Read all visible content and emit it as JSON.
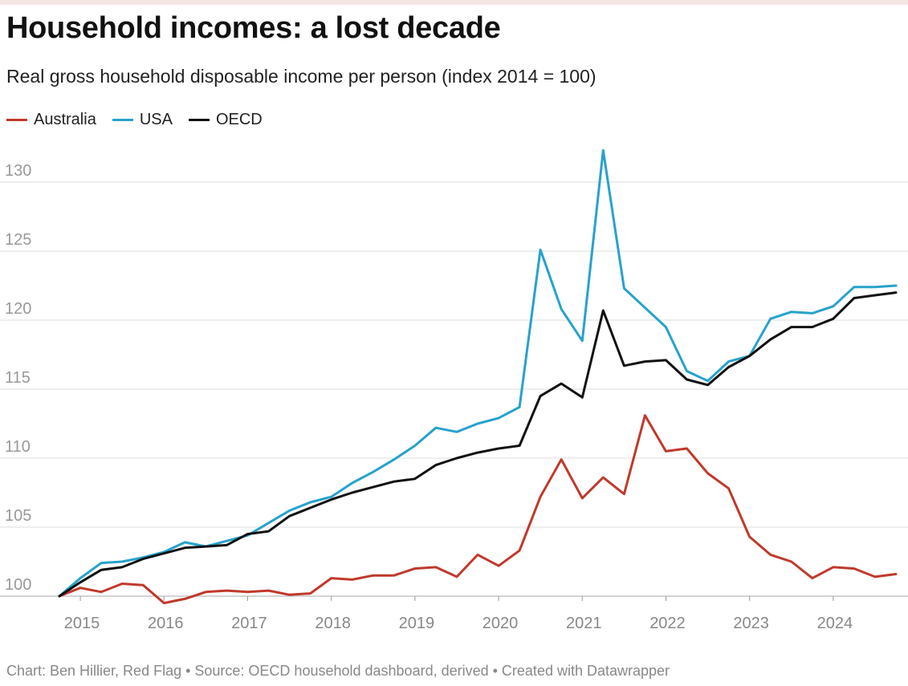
{
  "header": {
    "title": "Household incomes: a lost decade",
    "subtitle": "Real gross household disposable income per person (index 2014 = 100)"
  },
  "footer": {
    "credit": "Chart: Ben Hillier, Red Flag • Source: OECD household dashboard, derived • Created with Datawrapper"
  },
  "chart_data": {
    "type": "line",
    "title": "Household incomes: a lost decade",
    "subtitle": "Real gross household disposable income per person (index 2014 = 100)",
    "xlabel": "",
    "ylabel": "",
    "legend_position": "top-left",
    "grid": true,
    "ylim": [
      100,
      131
    ],
    "yticks": [
      100,
      105,
      110,
      115,
      120,
      125,
      130
    ],
    "xlim": [
      2014.75,
      2024.75
    ],
    "xticks": [
      2015,
      2016,
      2017,
      2018,
      2019,
      2020,
      2021,
      2022,
      2023,
      2024
    ],
    "x": [
      2014.75,
      2015.0,
      2015.25,
      2015.5,
      2015.75,
      2016.0,
      2016.25,
      2016.5,
      2016.75,
      2017.0,
      2017.25,
      2017.5,
      2017.75,
      2018.0,
      2018.25,
      2018.5,
      2018.75,
      2019.0,
      2019.25,
      2019.5,
      2019.75,
      2020.0,
      2020.25,
      2020.5,
      2020.75,
      2021.0,
      2021.25,
      2021.5,
      2021.75,
      2022.0,
      2022.25,
      2022.5,
      2022.75,
      2023.0,
      2023.25,
      2023.5,
      2023.75,
      2024.0,
      2024.25,
      2024.5,
      2024.75
    ],
    "series": [
      {
        "name": "Australia",
        "color": "#c0392b",
        "values": [
          100,
          100.6,
          100.3,
          100.9,
          100.8,
          99.5,
          99.8,
          100.3,
          100.4,
          100.3,
          100.4,
          100.1,
          100.2,
          101.3,
          101.2,
          101.5,
          101.5,
          102.0,
          102.1,
          101.4,
          103.0,
          102.2,
          103.3,
          107.2,
          109.9,
          107.1,
          108.6,
          107.4,
          113.1,
          110.5,
          110.7,
          108.9,
          107.8,
          104.3,
          103.0,
          102.5,
          101.3,
          102.1,
          102.0,
          101.4,
          101.6
        ]
      },
      {
        "name": "USA",
        "color": "#27a2cc",
        "values": [
          100,
          101.3,
          102.4,
          102.5,
          102.8,
          103.2,
          103.9,
          103.6,
          104.0,
          104.4,
          105.3,
          106.2,
          106.8,
          107.2,
          108.2,
          109.0,
          109.9,
          110.9,
          112.2,
          111.9,
          112.5,
          112.9,
          113.7,
          125.1,
          120.8,
          118.5,
          132.3,
          122.3,
          120.9,
          119.5,
          116.3,
          115.6,
          117.0,
          117.4,
          120.1,
          120.6,
          120.5,
          121.0,
          122.4,
          122.4,
          122.5
        ]
      },
      {
        "name": "OECD",
        "color": "#111111",
        "values": [
          100,
          101.0,
          101.9,
          102.1,
          102.7,
          103.1,
          103.5,
          103.6,
          103.7,
          104.5,
          104.7,
          105.8,
          106.4,
          107.0,
          107.5,
          107.9,
          108.3,
          108.5,
          109.5,
          110.0,
          110.4,
          110.7,
          110.9,
          114.5,
          115.4,
          114.4,
          120.7,
          116.7,
          117.0,
          117.1,
          115.7,
          115.3,
          116.6,
          117.4,
          118.6,
          119.5,
          119.5,
          120.1,
          121.6,
          121.8,
          122.0
        ]
      }
    ]
  }
}
